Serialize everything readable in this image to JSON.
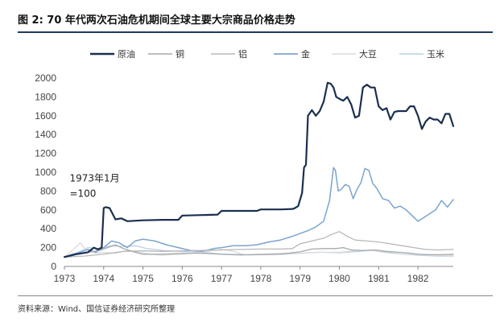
{
  "figure": {
    "title": "图  2:  70 年代两次石油危机期间全球主要大宗商品价格走势",
    "source": "资料来源：Wind、国信证券经济研究所整理"
  },
  "chart_data": {
    "type": "line",
    "title": "",
    "xlabel": "",
    "ylabel": "",
    "xlim": [
      1973,
      1982.9
    ],
    "ylim": [
      0,
      2000
    ],
    "yticks": [
      0,
      200,
      400,
      600,
      800,
      1000,
      1200,
      1400,
      1600,
      1800,
      2000
    ],
    "xticks": [
      1973,
      1974,
      1975,
      1976,
      1977,
      1978,
      1979,
      1980,
      1981,
      1982
    ],
    "grid": false,
    "legend_position": "top",
    "annotation": {
      "lines": [
        "1973年1月",
        "=100"
      ],
      "x": 1973.05,
      "y": 900
    },
    "series": [
      {
        "name": "原油",
        "color": "#1b2f4f",
        "width": 2.2,
        "x": [
          1973.0,
          1973.3,
          1973.6,
          1973.75,
          1973.85,
          1973.95,
          1974.0,
          1974.05,
          1974.15,
          1974.3,
          1974.45,
          1974.6,
          1975.0,
          1975.5,
          1975.9,
          1976.0,
          1976.5,
          1976.9,
          1977.0,
          1977.5,
          1977.9,
          1978.0,
          1978.5,
          1978.8,
          1978.85,
          1978.95,
          1979.05,
          1979.1,
          1979.15,
          1979.2,
          1979.3,
          1979.4,
          1979.5,
          1979.6,
          1979.7,
          1979.78,
          1979.85,
          1979.92,
          1980.0,
          1980.1,
          1980.2,
          1980.3,
          1980.4,
          1980.5,
          1980.6,
          1980.7,
          1980.8,
          1980.9,
          1981.0,
          1981.1,
          1981.2,
          1981.3,
          1981.4,
          1981.5,
          1981.6,
          1981.7,
          1981.8,
          1981.9,
          1982.0,
          1982.1,
          1982.2,
          1982.3,
          1982.4,
          1982.5,
          1982.6,
          1982.7,
          1982.8,
          1982.9
        ],
        "y": [
          100,
          130,
          150,
          200,
          180,
          200,
          620,
          630,
          620,
          500,
          510,
          480,
          490,
          495,
          495,
          540,
          545,
          550,
          590,
          590,
          590,
          605,
          605,
          610,
          615,
          640,
          780,
          1050,
          1080,
          1600,
          1660,
          1600,
          1650,
          1750,
          1950,
          1940,
          1900,
          1800,
          1780,
          1760,
          1800,
          1720,
          1580,
          1600,
          1900,
          1930,
          1900,
          1900,
          1700,
          1660,
          1680,
          1560,
          1640,
          1650,
          1650,
          1650,
          1700,
          1700,
          1600,
          1460,
          1540,
          1580,
          1560,
          1560,
          1520,
          1620,
          1620,
          1490
        ]
      },
      {
        "name": "铜",
        "color": "#a6a9ad",
        "width": 1.3,
        "x": [
          1973.0,
          1973.3,
          1973.6,
          1973.9,
          1974.1,
          1974.3,
          1974.5,
          1974.8,
          1975.0,
          1975.5,
          1976.0,
          1976.5,
          1977.0,
          1977.5,
          1978.0,
          1978.5,
          1979.0,
          1979.3,
          1979.6,
          1979.9,
          1980.1,
          1980.3,
          1980.6,
          1980.9,
          1981.2,
          1981.5,
          1981.8,
          1982.0,
          1982.3,
          1982.6,
          1982.9
        ],
        "y": [
          100,
          130,
          150,
          170,
          200,
          230,
          190,
          150,
          130,
          130,
          140,
          140,
          130,
          125,
          125,
          130,
          155,
          185,
          190,
          190,
          200,
          175,
          170,
          175,
          160,
          150,
          140,
          130,
          125,
          125,
          130
        ]
      },
      {
        "name": "铝",
        "color": "#b8b8b8",
        "width": 1.3,
        "x": [
          1973.0,
          1973.5,
          1974.0,
          1974.5,
          1975.0,
          1975.5,
          1976.0,
          1976.5,
          1977.0,
          1977.5,
          1978.0,
          1978.5,
          1978.8,
          1979.0,
          1979.3,
          1979.6,
          1979.8,
          1980.0,
          1980.2,
          1980.4,
          1980.7,
          1981.0,
          1981.3,
          1981.6,
          1981.9,
          1982.2,
          1982.5,
          1982.9
        ],
        "y": [
          100,
          110,
          130,
          160,
          165,
          160,
          165,
          170,
          175,
          180,
          185,
          185,
          190,
          240,
          270,
          300,
          340,
          370,
          320,
          280,
          270,
          260,
          240,
          220,
          200,
          180,
          175,
          180
        ]
      },
      {
        "name": "金",
        "color": "#7ba4cf",
        "width": 1.5,
        "x": [
          1973.0,
          1973.2,
          1973.4,
          1973.6,
          1973.8,
          1974.0,
          1974.2,
          1974.4,
          1974.6,
          1974.8,
          1975.0,
          1975.3,
          1975.6,
          1975.9,
          1976.2,
          1976.5,
          1976.8,
          1977.0,
          1977.3,
          1977.6,
          1977.9,
          1978.2,
          1978.5,
          1978.8,
          1979.0,
          1979.2,
          1979.4,
          1979.6,
          1979.75,
          1979.85,
          1979.9,
          1979.97,
          1980.05,
          1980.15,
          1980.25,
          1980.35,
          1980.45,
          1980.55,
          1980.65,
          1980.75,
          1980.85,
          1980.95,
          1981.1,
          1981.25,
          1981.4,
          1981.55,
          1981.7,
          1981.85,
          1982.0,
          1982.15,
          1982.3,
          1982.45,
          1982.6,
          1982.75,
          1982.9
        ],
        "y": [
          100,
          130,
          150,
          180,
          150,
          200,
          270,
          250,
          200,
          270,
          290,
          270,
          230,
          200,
          170,
          160,
          190,
          200,
          220,
          220,
          230,
          260,
          280,
          320,
          350,
          380,
          420,
          480,
          700,
          1050,
          1020,
          800,
          820,
          870,
          850,
          720,
          820,
          890,
          1040,
          1020,
          880,
          830,
          720,
          700,
          620,
          640,
          600,
          540,
          480,
          520,
          560,
          600,
          700,
          630,
          710
        ]
      },
      {
        "name": "大豆",
        "color": "#dcdcdc",
        "width": 1.3,
        "x": [
          1973.0,
          1973.2,
          1973.4,
          1973.5,
          1973.6,
          1973.8,
          1974.0,
          1974.3,
          1974.6,
          1974.9,
          1975.2,
          1975.5,
          1976.0,
          1976.5,
          1977.0,
          1977.3,
          1977.6,
          1977.9,
          1978.5,
          1979.0,
          1979.5,
          1980.0,
          1980.5,
          1980.8,
          1981.2,
          1981.6,
          1982.0,
          1982.5,
          1982.9
        ],
        "y": [
          100,
          170,
          250,
          200,
          170,
          140,
          150,
          140,
          170,
          150,
          130,
          120,
          130,
          150,
          180,
          160,
          120,
          130,
          140,
          140,
          150,
          150,
          170,
          170,
          145,
          130,
          125,
          115,
          115
        ]
      },
      {
        "name": "玉米",
        "color": "#b9cfe6",
        "width": 1.3,
        "x": [
          1973.0,
          1973.3,
          1973.6,
          1973.9,
          1974.2,
          1974.5,
          1974.8,
          1975.1,
          1975.5,
          1976.0,
          1976.5,
          1977.0,
          1977.5,
          1978.0,
          1978.5,
          1979.0,
          1979.5,
          1980.0,
          1980.5,
          1980.8,
          1981.2,
          1981.6,
          1982.0,
          1982.5,
          1982.9
        ],
        "y": [
          100,
          140,
          200,
          190,
          220,
          210,
          220,
          190,
          170,
          160,
          150,
          130,
          120,
          125,
          130,
          140,
          150,
          145,
          160,
          170,
          150,
          130,
          120,
          110,
          110
        ]
      }
    ]
  }
}
